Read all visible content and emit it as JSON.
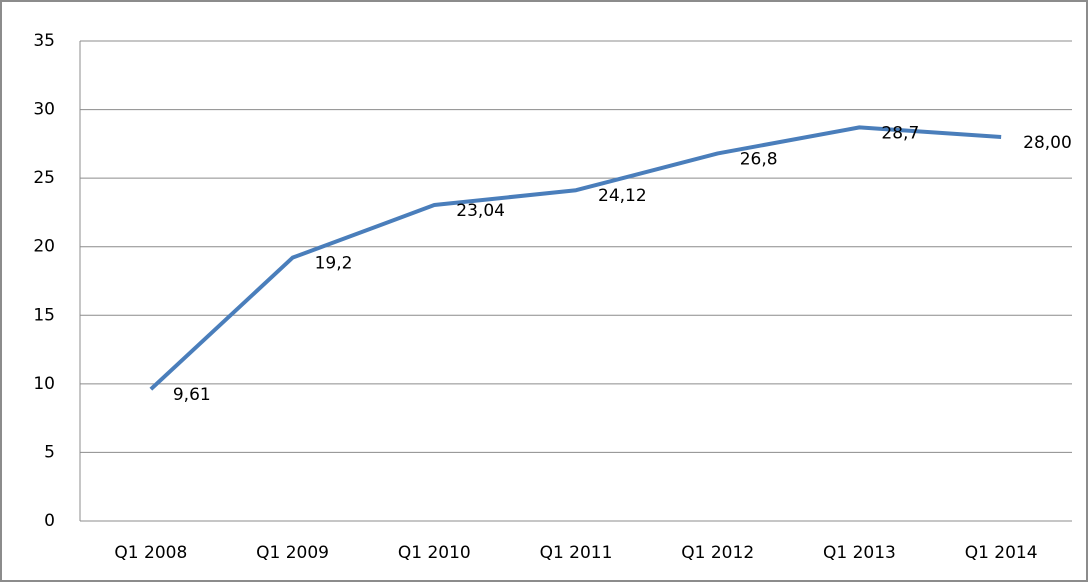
{
  "chart_data": {
    "type": "line",
    "categories": [
      "Q1 2008",
      "Q1 2009",
      "Q1 2010",
      "Q1 2011",
      "Q1 2012",
      "Q1 2013",
      "Q1 2014"
    ],
    "values": [
      9.61,
      19.2,
      23.04,
      24.12,
      26.8,
      28.7,
      28.0
    ],
    "value_labels": [
      "9,61",
      "19,2",
      "23,04",
      "24,12",
      "26,8",
      "28,7",
      "28,00"
    ],
    "color": "#4a7ebb",
    "ylim": [
      0,
      35
    ],
    "yticks": [
      0,
      5,
      10,
      15,
      20,
      25,
      30,
      35
    ],
    "grid": true
  }
}
